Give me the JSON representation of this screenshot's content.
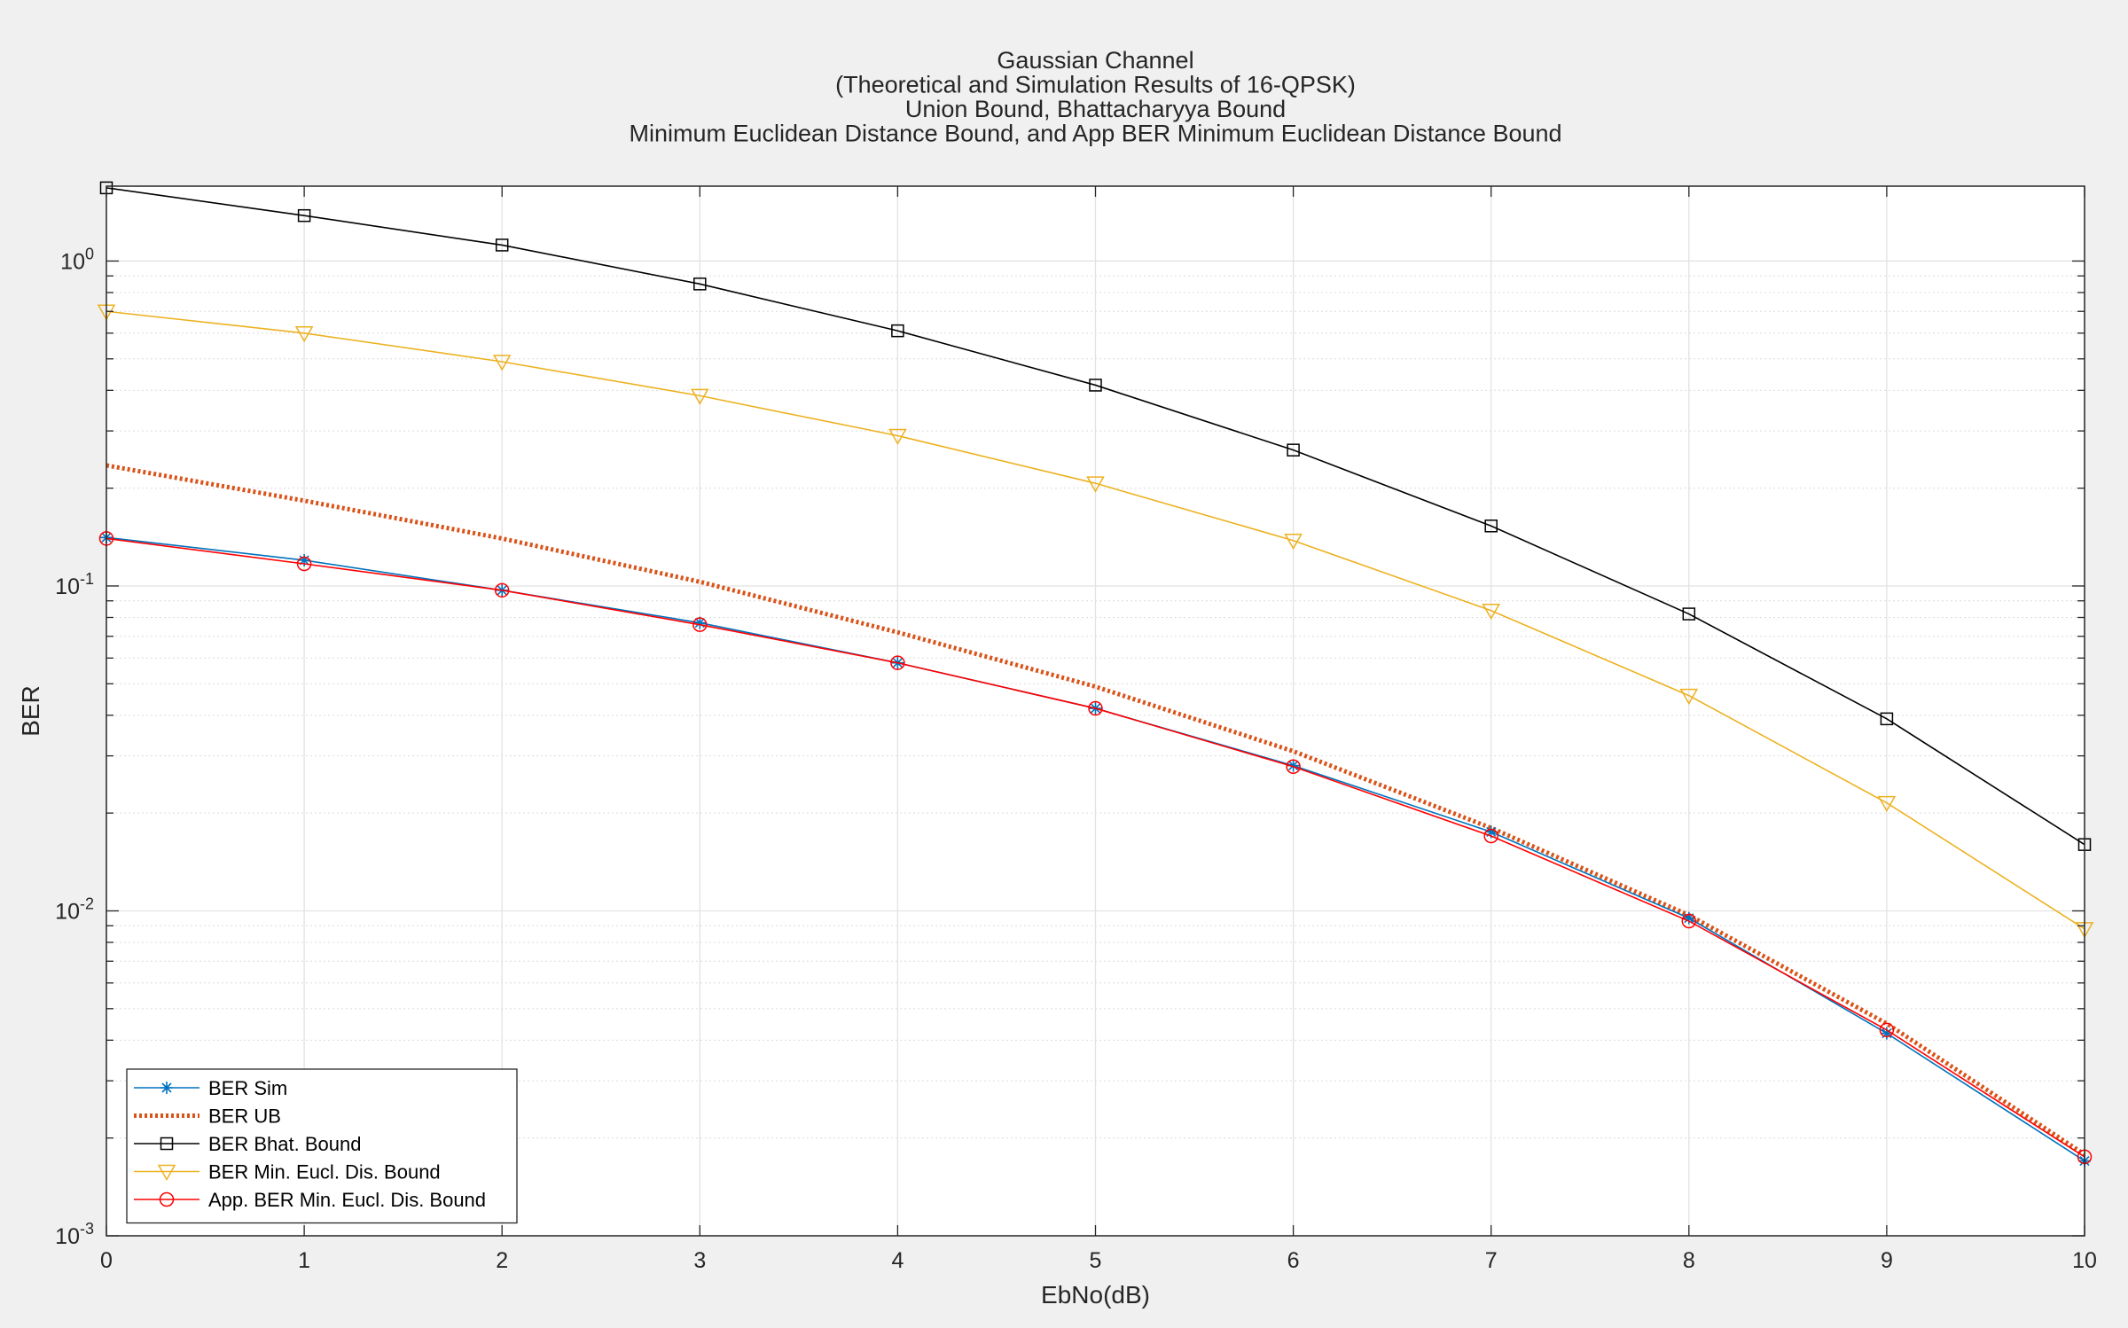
{
  "chart_data": {
    "type": "line",
    "title_lines": [
      "Gaussian Channel",
      "(Theoretical and Simulation Results of 16-QPSK)",
      "Union Bound, Bhattacharyya Bound",
      "Minimum Euclidean Distance Bound, and App BER Minimum Euclidean Distance Bound"
    ],
    "xlabel": "EbNo(dB)",
    "ylabel": "BER",
    "xlim": [
      0,
      10
    ],
    "ylim": [
      0.001,
      1.7
    ],
    "yscale": "log",
    "grid": true,
    "legend_location": "bottom-left",
    "x_ticks": [
      "0",
      "1",
      "2",
      "3",
      "4",
      "5",
      "6",
      "7",
      "8",
      "9",
      "10"
    ],
    "y_ticks": [
      {
        "base": "10",
        "exp": "0",
        "value": 1
      },
      {
        "base": "10",
        "exp": "-1",
        "value": 0.1
      },
      {
        "base": "10",
        "exp": "-2",
        "value": 0.01
      },
      {
        "base": "10",
        "exp": "-3",
        "value": 0.001
      }
    ],
    "x": [
      0,
      1,
      2,
      3,
      4,
      5,
      6,
      7,
      8,
      9,
      10
    ],
    "series": [
      {
        "name": "BER Sim",
        "color": "#0072bd",
        "marker": "asterisk",
        "style": "solid",
        "values": [
          0.141,
          0.12,
          0.097,
          0.077,
          0.058,
          0.042,
          0.028,
          0.0175,
          0.0095,
          0.0042,
          0.0017
        ]
      },
      {
        "name": "BER UB",
        "color": "#d95319",
        "marker": "none",
        "style": "dotted",
        "values": [
          0.235,
          0.183,
          0.14,
          0.103,
          0.072,
          0.049,
          0.031,
          0.018,
          0.0097,
          0.0045,
          0.00178
        ]
      },
      {
        "name": "BER Bhat. Bound",
        "color": "#000000",
        "marker": "square",
        "style": "solid",
        "values": [
          1.68,
          1.38,
          1.12,
          0.85,
          0.61,
          0.415,
          0.262,
          0.153,
          0.082,
          0.039,
          0.016
        ]
      },
      {
        "name": "BER Min. Eucl. Dis. Bound",
        "color": "#edb120",
        "marker": "triangle-down",
        "style": "solid",
        "values": [
          0.7,
          0.6,
          0.49,
          0.385,
          0.29,
          0.207,
          0.138,
          0.084,
          0.046,
          0.0215,
          0.0088
        ]
      },
      {
        "name": "App. BER Min. Eucl. Dis. Bound",
        "color": "#ff0000",
        "marker": "circle",
        "style": "solid",
        "values": [
          0.14,
          0.117,
          0.097,
          0.076,
          0.058,
          0.042,
          0.0278,
          0.017,
          0.0093,
          0.0043,
          0.00175
        ]
      }
    ]
  }
}
